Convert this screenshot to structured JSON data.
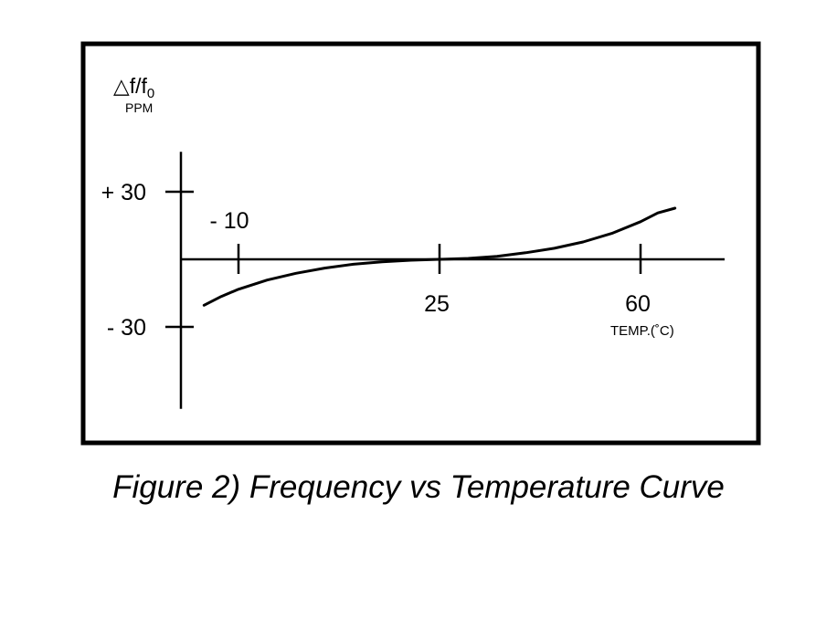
{
  "caption": "Figure 2) Frequency vs Temperature Curve",
  "chart_data": {
    "type": "line",
    "title": "",
    "ylabel": "△f/f0",
    "ylabel_main": "△f/f",
    "ylabel_sub": "0",
    "yunit": "PPM",
    "xlabel": "TEMP.(˚C)",
    "x_ticks": [
      {
        "value": -10,
        "label": "- 10"
      },
      {
        "value": 25,
        "label": "25"
      },
      {
        "value": 60,
        "label": "60"
      }
    ],
    "y_ticks": [
      {
        "value": 30,
        "label": "+ 30"
      },
      {
        "value": -30,
        "label": "- 30"
      }
    ],
    "xlim": [
      -20,
      75
    ],
    "ylim": [
      -66,
      66
    ],
    "grid": false,
    "legend": "none",
    "series": [
      {
        "x": [
          -16,
          -13,
          -10,
          -5,
          0,
          5,
          10,
          15,
          20,
          25,
          30,
          35,
          40,
          45,
          50,
          55,
          60,
          63,
          66
        ],
        "y": [
          -20.4,
          -16.5,
          -13.3,
          -9.2,
          -6.2,
          -3.9,
          -2.2,
          -1.1,
          -0.4,
          0,
          0.4,
          1.3,
          2.9,
          4.9,
          7.7,
          11.5,
          16.7,
          20.6,
          22.7
        ],
        "color": "#000000"
      }
    ]
  }
}
